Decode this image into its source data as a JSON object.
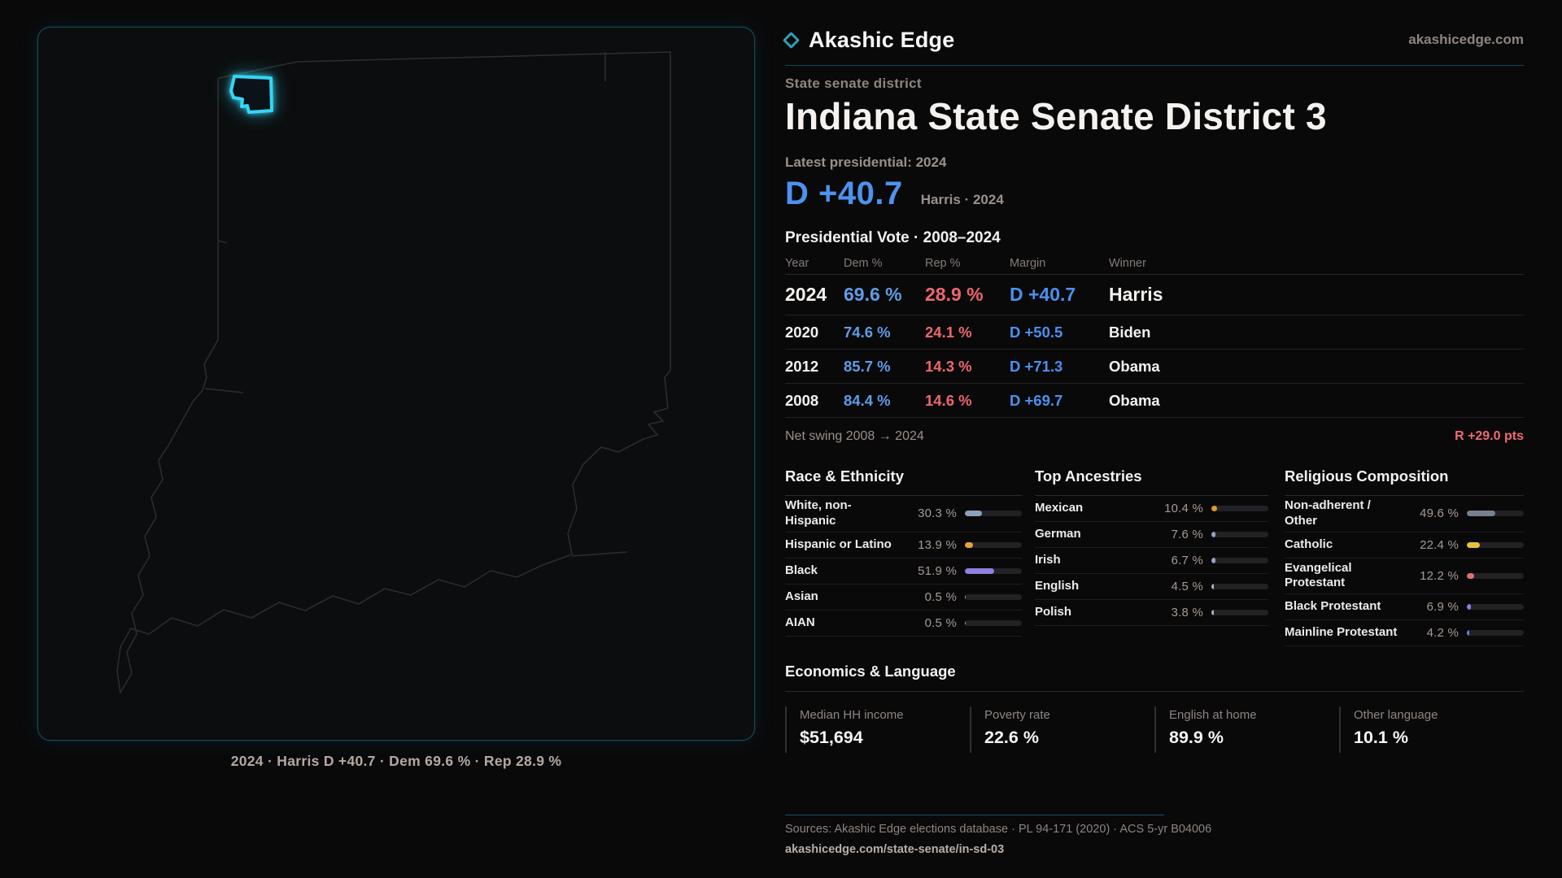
{
  "colors": {
    "accent_cyan": "#35d6f5",
    "dem_blue": "#5f9ce8",
    "rep_red": "#ee666e",
    "margin_blue": "#4a90f0",
    "swing_red": "#f06a72"
  },
  "header": {
    "brand": "Akashic Edge",
    "site": "akashicedge.com"
  },
  "map": {
    "caption": "2024 · Harris D +40.7 · Dem 69.6 % · Rep 28.9 %"
  },
  "hero": {
    "kicker": "State senate district",
    "title": "Indiana State Senate District 3",
    "latest_label": "Latest presidential: 2024",
    "margin": "D +40.7",
    "margin_context": "Harris · 2024"
  },
  "vote_table": {
    "heading": "Presidential Vote · 2008–2024",
    "columns": [
      "Year",
      "Dem %",
      "Rep %",
      "Margin",
      "Winner"
    ],
    "rows": [
      {
        "year": "2024",
        "dem": "69.6 %",
        "rep": "28.9 %",
        "margin": "D +40.7",
        "winner": "Harris"
      },
      {
        "year": "2020",
        "dem": "74.6 %",
        "rep": "24.1 %",
        "margin": "D +50.5",
        "winner": "Biden"
      },
      {
        "year": "2012",
        "dem": "85.7 %",
        "rep": "14.3 %",
        "margin": "D +71.3",
        "winner": "Obama"
      },
      {
        "year": "2008",
        "dem": "84.4 %",
        "rep": "14.6 %",
        "margin": "D +69.7",
        "winner": "Obama"
      }
    ]
  },
  "net_swing": {
    "label": "Net swing 2008 → 2024",
    "value": "R +29.0 pts"
  },
  "race": {
    "heading": "Race & Ethnicity",
    "rows": [
      {
        "label": "White, non-Hispanic",
        "value": "30.3 %",
        "pct": 30.3,
        "color": "#8da0ba"
      },
      {
        "label": "Hispanic or Latino",
        "value": "13.9 %",
        "pct": 13.9,
        "color": "#e5a33e"
      },
      {
        "label": "Black",
        "value": "51.9 %",
        "pct": 51.9,
        "color": "#8f7fe0"
      },
      {
        "label": "Asian",
        "value": "0.5 %",
        "pct": 0.5,
        "color": "#8da0ba"
      },
      {
        "label": "AIAN",
        "value": "0.5 %",
        "pct": 0.5,
        "color": "#8da0ba"
      }
    ]
  },
  "ancestries": {
    "heading": "Top Ancestries",
    "rows": [
      {
        "label": "Mexican",
        "value": "10.4 %",
        "pct": 10.4,
        "color": "#e09a2f"
      },
      {
        "label": "German",
        "value": "7.6 %",
        "pct": 7.6,
        "color": "#93a4c0"
      },
      {
        "label": "Irish",
        "value": "6.7 %",
        "pct": 6.7,
        "color": "#93a4c0"
      },
      {
        "label": "English",
        "value": "4.5 %",
        "pct": 4.5,
        "color": "#a8b4c4"
      },
      {
        "label": "Polish",
        "value": "3.8 %",
        "pct": 3.8,
        "color": "#a8b4c4"
      }
    ]
  },
  "religion": {
    "heading": "Religious Composition",
    "rows": [
      {
        "label": "Non-adherent / Other",
        "value": "49.6 %",
        "pct": 49.6,
        "color": "#78808f"
      },
      {
        "label": "Catholic",
        "value": "22.4 %",
        "pct": 22.4,
        "color": "#e6c23d"
      },
      {
        "label": "Evangelical Protestant",
        "value": "12.2 %",
        "pct": 12.2,
        "color": "#e0706e"
      },
      {
        "label": "Black Protestant",
        "value": "6.9 %",
        "pct": 6.9,
        "color": "#8f7fe0"
      },
      {
        "label": "Mainline Protestant",
        "value": "4.2 %",
        "pct": 4.2,
        "color": "#4f8ce0"
      }
    ]
  },
  "economics": {
    "heading": "Economics & Language",
    "stats": [
      {
        "label": "Median HH income",
        "value": "$51,694"
      },
      {
        "label": "Poverty rate",
        "value": "22.6 %"
      },
      {
        "label": "English at home",
        "value": "89.9 %"
      },
      {
        "label": "Other language",
        "value": "10.1 %"
      }
    ]
  },
  "footer": {
    "sources": "Sources: Akashic Edge elections database · PL 94-171 (2020) · ACS 5-yr B04006",
    "permalink": "akashicedge.com/state-senate/in-sd-03"
  }
}
